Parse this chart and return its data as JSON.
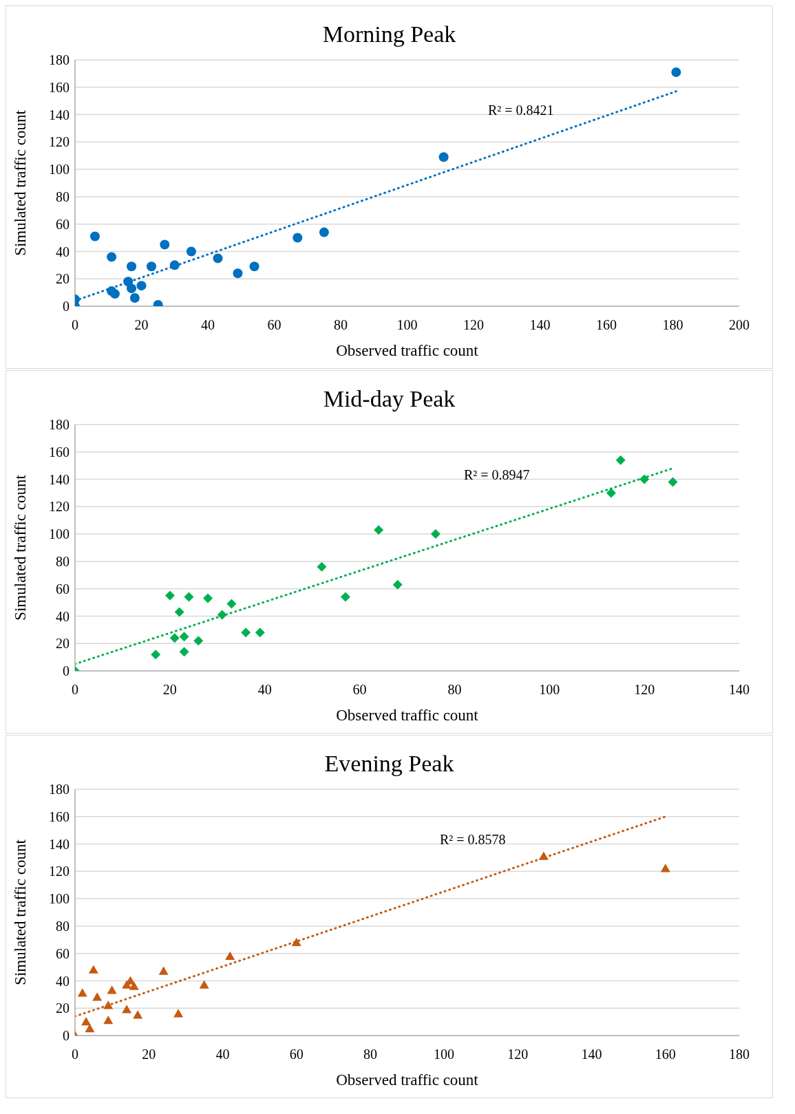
{
  "chart_data": [
    {
      "type": "scatter",
      "title": "Morning Peak",
      "xlabel": "Observed traffic count",
      "ylabel": "Simulated traffic count",
      "xlim": [
        0,
        200
      ],
      "xticks": [
        0,
        20,
        40,
        60,
        80,
        100,
        120,
        140,
        160,
        180,
        200
      ],
      "ylim": [
        0,
        180
      ],
      "yticks": [
        0,
        20,
        40,
        60,
        80,
        100,
        120,
        140,
        160,
        180
      ],
      "grid": "y",
      "legend": false,
      "marker": "circle",
      "series": [
        {
          "color": "#0070c0",
          "x": [
            0,
            0,
            6,
            11,
            11,
            12,
            16,
            17,
            17,
            18,
            20,
            23,
            25,
            27,
            30,
            35,
            43,
            49,
            54,
            67,
            75,
            111,
            181
          ],
          "values": [
            0,
            5,
            51,
            36,
            11,
            9,
            18,
            29,
            13,
            6,
            15,
            29,
            1,
            45,
            30,
            40,
            35,
            24,
            29,
            50,
            54,
            109,
            171
          ]
        },
        {
          "type": "line",
          "color": "#0070c0",
          "line_style": "dotted",
          "marker": "none",
          "x": [
            0,
            181
          ],
          "values": [
            4,
            157
          ]
        }
      ],
      "annotations": [
        "R² = 0.8421"
      ]
    },
    {
      "type": "scatter",
      "title": "Mid-day Peak",
      "xlabel": "Observed traffic count",
      "ylabel": "Simulated traffic count",
      "xlim": [
        0,
        140
      ],
      "xticks": [
        0,
        20,
        40,
        60,
        80,
        100,
        120,
        140
      ],
      "ylim": [
        0,
        180
      ],
      "yticks": [
        0,
        20,
        40,
        60,
        80,
        100,
        120,
        140,
        160,
        180
      ],
      "grid": "y",
      "legend": false,
      "marker": "diamond",
      "series": [
        {
          "color": "#00b050",
          "x": [
            0,
            17,
            20,
            21,
            22,
            23,
            23,
            24,
            26,
            28,
            31,
            33,
            36,
            39,
            52,
            57,
            64,
            68,
            76,
            113,
            115,
            120,
            126
          ],
          "values": [
            0,
            12,
            55,
            24,
            43,
            25,
            14,
            54,
            22,
            53,
            41,
            49,
            28,
            28,
            76,
            54,
            103,
            63,
            100,
            130,
            154,
            140,
            138
          ]
        },
        {
          "type": "line",
          "color": "#00b050",
          "line_style": "dotted",
          "marker": "none",
          "x": [
            0,
            126
          ],
          "values": [
            5,
            148
          ]
        }
      ],
      "annotations": [
        "R² = 0.8947"
      ]
    },
    {
      "type": "scatter",
      "title": "Evening Peak",
      "xlabel": "Observed traffic count",
      "ylabel": "Simulated traffic count",
      "xlim": [
        0,
        180
      ],
      "xticks": [
        0,
        20,
        40,
        60,
        80,
        100,
        120,
        140,
        160,
        180
      ],
      "ylim": [
        0,
        180
      ],
      "yticks": [
        0,
        20,
        40,
        60,
        80,
        100,
        120,
        140,
        160,
        180
      ],
      "grid": "y",
      "legend": false,
      "marker": "triangle",
      "series": [
        {
          "color": "#c55a11",
          "x": [
            0,
            2,
            3,
            4,
            5,
            6,
            9,
            9,
            10,
            14,
            14,
            15,
            16,
            17,
            24,
            28,
            35,
            42,
            60,
            127,
            160
          ],
          "values": [
            0,
            31,
            10,
            5,
            48,
            28,
            22,
            11,
            33,
            19,
            37,
            40,
            36,
            15,
            47,
            16,
            37,
            58,
            68,
            131,
            122
          ]
        },
        {
          "type": "line",
          "color": "#c55a11",
          "line_style": "dotted",
          "marker": "none",
          "x": [
            0,
            160
          ],
          "values": [
            14,
            160
          ]
        }
      ],
      "annotations": [
        "R² = 0.8578"
      ]
    }
  ]
}
